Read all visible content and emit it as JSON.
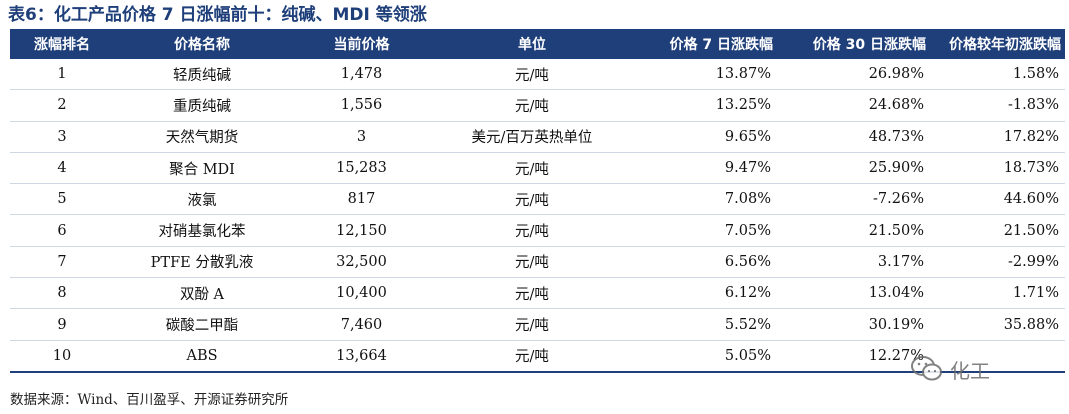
{
  "title": "表6：化工产品价格 7 日涨幅前十：纯碱、MDI 等领涨",
  "headers": [
    "涨幅排名",
    "价格名称",
    "当前价格",
    "单位",
    "价格 7 日涨跌幅",
    "价格 30 日涨跌幅",
    "价格较年初涨跌幅"
  ],
  "rows": [
    [
      "1",
      "轻质纯碱",
      "1,478",
      "元/吨",
      "13.87%",
      "26.98%",
      "1.58%"
    ],
    [
      "2",
      "重质纯碱",
      "1,556",
      "元/吨",
      "13.25%",
      "24.68%",
      "-1.83%"
    ],
    [
      "3",
      "天然气期货",
      "3",
      "美元/百万英热单位",
      "9.65%",
      "48.73%",
      "17.82%"
    ],
    [
      "4",
      "聚合 MDI",
      "15,283",
      "元/吨",
      "9.47%",
      "25.90%",
      "18.73%"
    ],
    [
      "5",
      "液氯",
      "817",
      "元/吨",
      "7.08%",
      "-7.26%",
      "44.60%"
    ],
    [
      "6",
      "对硝基氯化苯",
      "12,150",
      "元/吨",
      "7.05%",
      "21.50%",
      "21.50%"
    ],
    [
      "7",
      "PTFE 分散乳液",
      "32,500",
      "元/吨",
      "6.56%",
      "3.17%",
      "-2.99%"
    ],
    [
      "8",
      "双酚 A",
      "10,400",
      "元/吨",
      "6.12%",
      "13.04%",
      "1.71%"
    ],
    [
      "9",
      "碳酸二甲酯",
      "7,460",
      "元/吨",
      "5.52%",
      "30.19%",
      "35.88%"
    ],
    [
      "10",
      "ABS",
      "13,664",
      "元/吨",
      "5.05%",
      "12.27%",
      ""
    ]
  ],
  "source": "数据来源：Wind、百川盈孚、开源证券研究所",
  "watermark": "化工"
}
